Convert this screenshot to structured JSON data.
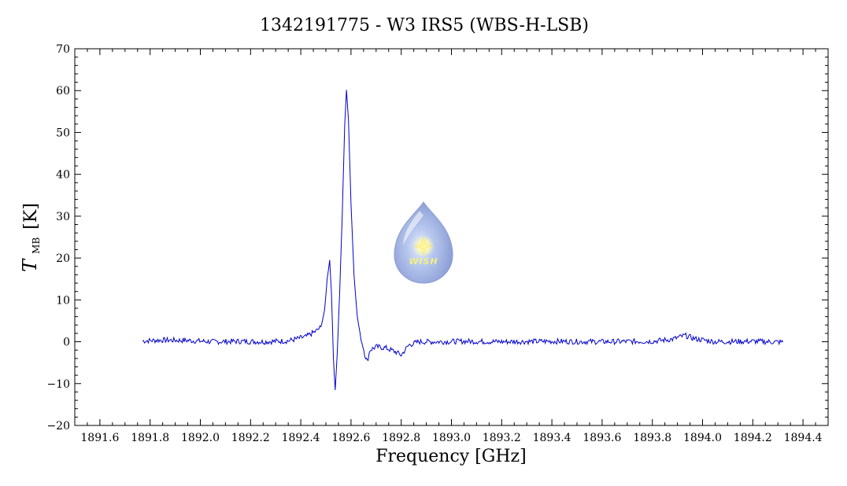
{
  "chart_data": {
    "type": "line",
    "title": "1342191775 - W3 IRS5 (WBS-H-LSB)",
    "xlabel": "Frequency [GHz]",
    "ylabel": {
      "symbol": "T",
      "subscript": "MB",
      "unit": "[K]"
    },
    "xlim": [
      1891.5,
      1894.5
    ],
    "ylim": [
      -20,
      70
    ],
    "xticks": [
      1891.6,
      1891.8,
      1892.0,
      1892.2,
      1892.4,
      1892.6,
      1892.8,
      1893.0,
      1893.2,
      1893.4,
      1893.6,
      1893.8,
      1894.0,
      1894.2,
      1894.4
    ],
    "xtick_labels": [
      "1891.6",
      "1891.8",
      "1892.0",
      "1892.2",
      "1892.4",
      "1892.6",
      "1892.8",
      "1893.0",
      "1893.2",
      "1893.4",
      "1893.6",
      "1893.8",
      "1894.0",
      "1894.2",
      "1894.4"
    ],
    "yticks": [
      -20,
      -10,
      0,
      10,
      20,
      30,
      40,
      50,
      60,
      70
    ],
    "ytick_labels": [
      "−20",
      "−10",
      "0",
      "10",
      "20",
      "30",
      "40",
      "50",
      "60",
      "70"
    ],
    "series": [
      {
        "color": "#0000cc",
        "x": [
          1891.77,
          1891.85,
          1891.95,
          1892.05,
          1892.15,
          1892.25,
          1892.35,
          1892.42,
          1892.46,
          1892.48,
          1892.495,
          1892.505,
          1892.515,
          1892.522,
          1892.53,
          1892.537,
          1892.545,
          1892.555,
          1892.565,
          1892.575,
          1892.582,
          1892.59,
          1892.6,
          1892.612,
          1892.625,
          1892.64,
          1892.655,
          1892.665,
          1892.675,
          1892.7,
          1892.74,
          1892.78,
          1892.8,
          1892.83,
          1892.87,
          1892.95,
          1893.05,
          1893.2,
          1893.4,
          1893.6,
          1893.8,
          1893.88,
          1893.93,
          1893.97,
          1894.05,
          1894.2,
          1894.32
        ],
        "y": [
          0.2,
          0.4,
          0.3,
          0.0,
          0.1,
          0.0,
          0.2,
          1.2,
          2.5,
          3.5,
          7.5,
          15.0,
          19.5,
          12.0,
          -4.0,
          -11.5,
          -3.0,
          12.0,
          30.0,
          52.0,
          60.0,
          53.0,
          33.0,
          16.0,
          6.0,
          0.5,
          -3.0,
          -4.8,
          -2.0,
          -1.2,
          -1.5,
          -2.5,
          -3.2,
          -0.8,
          0.0,
          0.0,
          0.1,
          0.0,
          0.1,
          0.0,
          0.1,
          0.6,
          1.5,
          0.7,
          0.0,
          0.1,
          -0.1
        ]
      }
    ],
    "grid": false,
    "logo_text": "WISH"
  }
}
